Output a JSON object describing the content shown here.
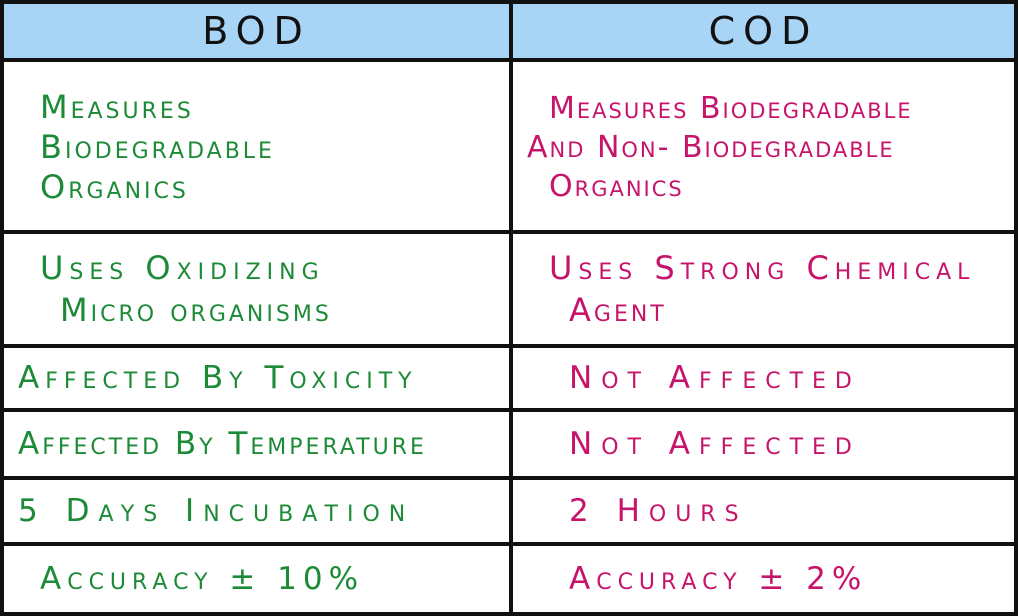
{
  "header": {
    "bod": "BOD",
    "cod": "COD"
  },
  "colors": {
    "header_bg": "#a8d4f5",
    "bod_text": "#1c8a37",
    "cod_text": "#c7146b",
    "border": "#111111"
  },
  "rows": [
    {
      "bod": [
        "Measures",
        "Biodegradable",
        "Organics"
      ],
      "cod": [
        "Measures Biodegradable",
        "And Non- Biodegradable",
        "Organics"
      ]
    },
    {
      "bod": [
        "Uses Oxidizing",
        "Micro organisms"
      ],
      "cod": [
        "Uses Strong Chemical",
        "Agent"
      ]
    },
    {
      "bod": [
        "Affected By Toxicity"
      ],
      "cod": [
        "Not Affected"
      ]
    },
    {
      "bod": [
        "Affected By Temperature"
      ],
      "cod": [
        "Not Affected"
      ]
    },
    {
      "bod": [
        "5 Days Incubation"
      ],
      "cod": [
        "2 Hours"
      ]
    },
    {
      "bod": [
        "Accuracy ± 10%"
      ],
      "cod": [
        "Accuracy ± 2%"
      ]
    }
  ]
}
